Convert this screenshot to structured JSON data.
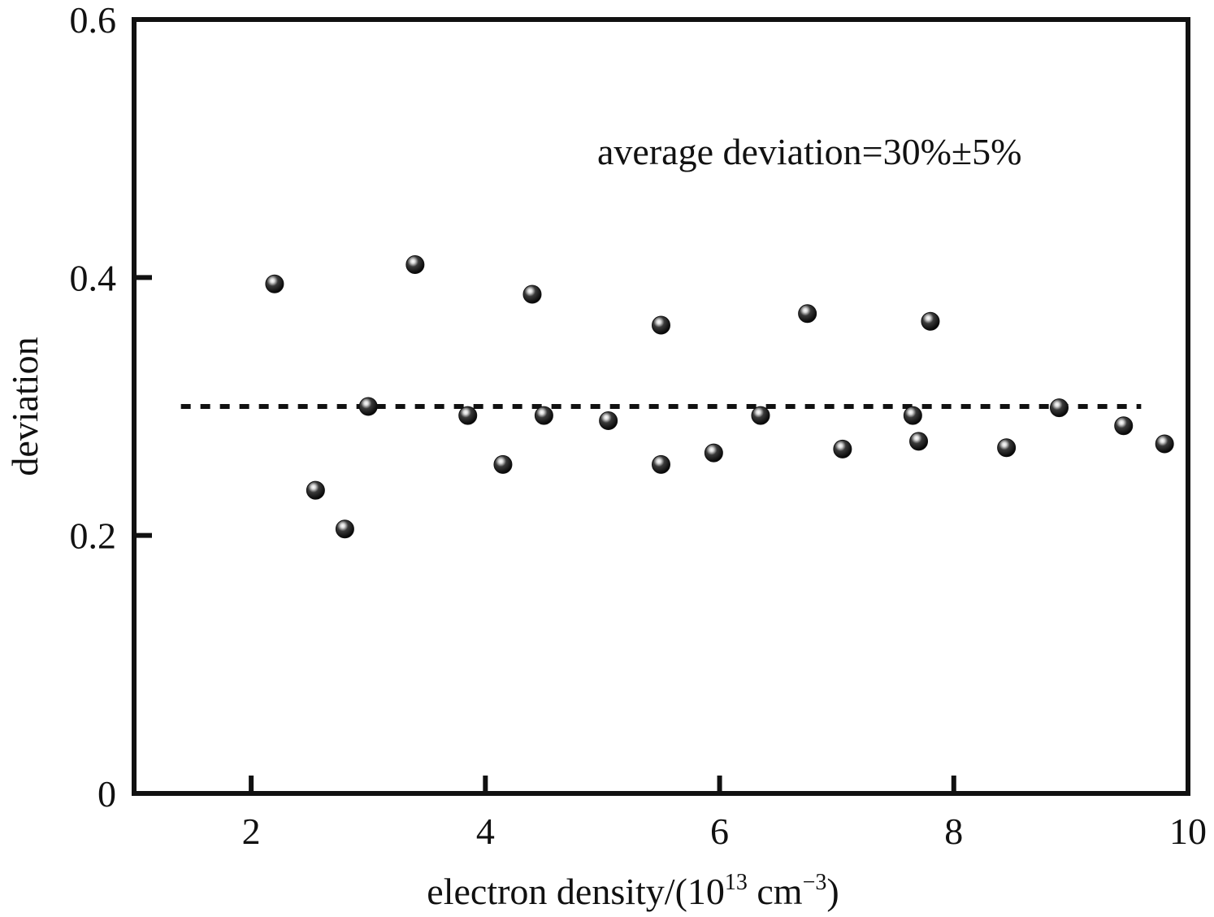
{
  "chart_data": {
    "type": "scatter",
    "title": "",
    "xlabel": {
      "prefix": "electron density/(10",
      "sup1": "13",
      "middle": " cm",
      "sup2": "−3",
      "suffix": ")"
    },
    "ylabel": "deviation",
    "xlim": [
      1,
      10
    ],
    "ylim": [
      0,
      0.6
    ],
    "xticks": [
      {
        "value": 2,
        "label": "2"
      },
      {
        "value": 4,
        "label": "4"
      },
      {
        "value": 6,
        "label": "6"
      },
      {
        "value": 8,
        "label": "8"
      },
      {
        "value": 10,
        "label": "10"
      }
    ],
    "yticks": [
      {
        "value": 0,
        "label": "0"
      },
      {
        "value": 0.2,
        "label": "0.2"
      },
      {
        "value": 0.4,
        "label": "0.4"
      },
      {
        "value": 0.6,
        "label": "0.6"
      }
    ],
    "grid": false,
    "legend": "none",
    "annotation": "average deviation=30%±5%",
    "reference_line": {
      "y": 0.3,
      "x_start": 1.4,
      "x_end": 9.6,
      "style": "dotted"
    },
    "marker_color": "#111111",
    "series": [
      {
        "points": [
          {
            "x": 2.2,
            "y": 0.395
          },
          {
            "x": 2.55,
            "y": 0.235
          },
          {
            "x": 2.8,
            "y": 0.205
          },
          {
            "x": 3.0,
            "y": 0.3
          },
          {
            "x": 3.4,
            "y": 0.41
          },
          {
            "x": 3.85,
            "y": 0.293
          },
          {
            "x": 4.15,
            "y": 0.255
          },
          {
            "x": 4.4,
            "y": 0.387
          },
          {
            "x": 4.5,
            "y": 0.293
          },
          {
            "x": 5.05,
            "y": 0.289
          },
          {
            "x": 5.5,
            "y": 0.363
          },
          {
            "x": 5.5,
            "y": 0.255
          },
          {
            "x": 5.95,
            "y": 0.264
          },
          {
            "x": 6.35,
            "y": 0.293
          },
          {
            "x": 6.75,
            "y": 0.372
          },
          {
            "x": 7.05,
            "y": 0.267
          },
          {
            "x": 7.65,
            "y": 0.293
          },
          {
            "x": 7.7,
            "y": 0.273
          },
          {
            "x": 7.8,
            "y": 0.366
          },
          {
            "x": 8.45,
            "y": 0.268
          },
          {
            "x": 8.9,
            "y": 0.299
          },
          {
            "x": 9.45,
            "y": 0.285
          },
          {
            "x": 9.8,
            "y": 0.271
          }
        ]
      }
    ]
  }
}
